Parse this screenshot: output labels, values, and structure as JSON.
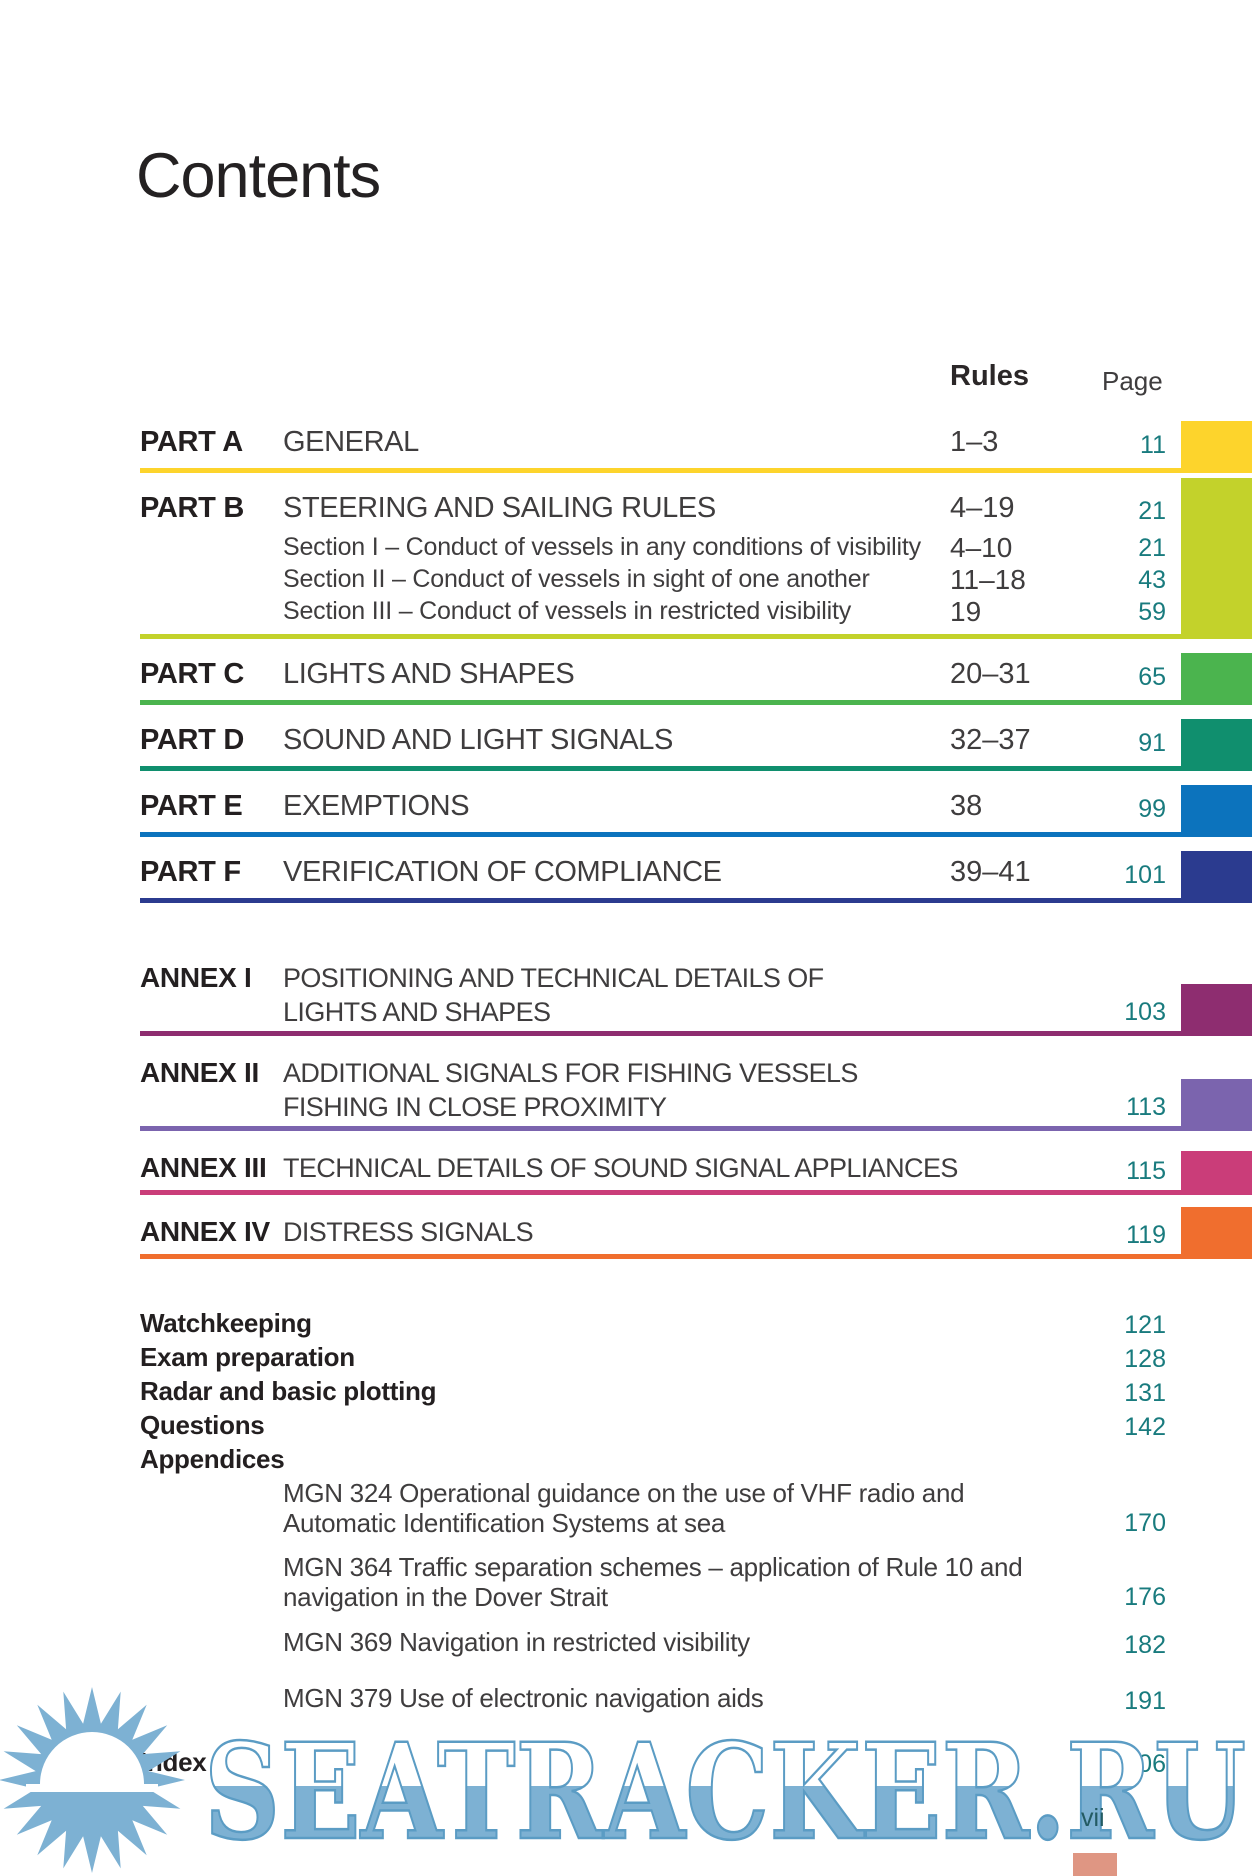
{
  "header": {
    "title": "Contents",
    "rules_col": "Rules",
    "page_col": "Page"
  },
  "toc": {
    "parts": [
      {
        "label": "PART A",
        "title": "GENERAL",
        "rules": "1–3",
        "page": "11",
        "color": "#fdd42c"
      },
      {
        "label": "PART B",
        "title": "STEERING AND SAILING RULES",
        "rules": "4–19",
        "page": "21",
        "color": "#c3d22b",
        "sections": [
          {
            "title": "Section I – Conduct of vessels in any conditions of visibility",
            "rules": "4–10",
            "page": "21"
          },
          {
            "title": "Section II – Conduct of vessels in sight of one another",
            "rules": "11–18",
            "page": "43"
          },
          {
            "title": "Section III – Conduct of vessels in restricted visibility",
            "rules": "19",
            "page": "59"
          }
        ]
      },
      {
        "label": "PART C",
        "title": "LIGHTS AND SHAPES",
        "rules": "20–31",
        "page": "65",
        "color": "#4bb44e"
      },
      {
        "label": "PART D",
        "title": "SOUND AND LIGHT SIGNALS",
        "rules": "32–37",
        "page": "91",
        "color": "#108f6e"
      },
      {
        "label": "PART E",
        "title": "EXEMPTIONS",
        "rules": "38",
        "page": "99",
        "color": "#0c73bd"
      },
      {
        "label": "PART F",
        "title": "VERIFICATION OF COMPLIANCE",
        "rules": "39–41",
        "page": "101",
        "color": "#2b3b8f"
      }
    ],
    "annexes": [
      {
        "label": "ANNEX I",
        "line1": "POSITIONING AND TECHNICAL DETAILS OF",
        "line2": "LIGHTS AND SHAPES",
        "page": "103",
        "color": "#8e2d70"
      },
      {
        "label": "ANNEX II",
        "line1": "ADDITIONAL SIGNALS FOR FISHING VESSELS",
        "line2": "FISHING IN CLOSE PROXIMITY",
        "page": "113",
        "color": "#7b64ae"
      },
      {
        "label": "ANNEX III",
        "line1": "TECHNICAL DETAILS OF SOUND SIGNAL APPLIANCES",
        "page": "115",
        "color": "#ca3d79"
      },
      {
        "label": "ANNEX IV",
        "line1": "DISTRESS SIGNALS",
        "page": "119",
        "color": "#f06e2e"
      }
    ],
    "extras": [
      {
        "title": "Watchkeeping",
        "page": "121"
      },
      {
        "title": "Exam preparation",
        "page": "128"
      },
      {
        "title": "Radar and basic plotting",
        "page": "131"
      },
      {
        "title": "Questions",
        "page": "142"
      },
      {
        "title": "Appendices",
        "page": ""
      }
    ],
    "appendix_items": [
      {
        "line1": "MGN 324 Operational guidance on the use of VHF radio and",
        "line2": "Automatic Identification Systems at sea",
        "page": "170"
      },
      {
        "line1": "MGN 364 Traffic separation schemes – application of Rule 10 and",
        "line2": "navigation in the Dover Strait",
        "page": "176"
      },
      {
        "line1": "MGN 369 Navigation in restricted visibility",
        "page": "182"
      },
      {
        "line1": "MGN 379 Use of electronic navigation aids",
        "page": "191"
      }
    ],
    "index": {
      "label": "Index",
      "page": "206"
    }
  },
  "footer": {
    "folio": "vii",
    "corner_tab_color": "#df9683"
  },
  "watermark": {
    "text": "SEATRACKER.RU",
    "fill": "#7db1d3",
    "stroke": "#5b9cc4"
  },
  "colors": {
    "page_number": "#197b7e",
    "text_dark": "#231f20",
    "text_body": "#3f3d3e"
  }
}
